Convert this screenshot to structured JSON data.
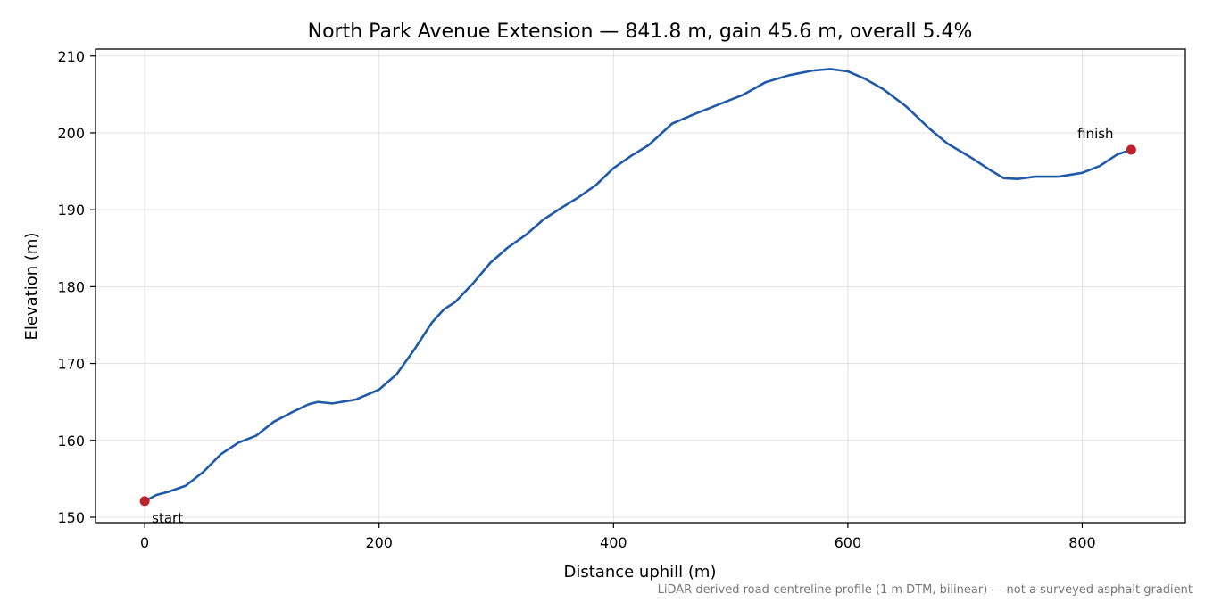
{
  "chart_data": {
    "type": "line",
    "title": "North Park Avenue Extension — 841.8 m, gain 45.6 m, overall 5.4%",
    "xlabel": "Distance uphill (m)",
    "ylabel": "Elevation (m)",
    "caption": "LiDAR-derived road-centreline profile (1 m DTM, bilinear) — not a surveyed asphalt gradient",
    "xlim": [
      -42,
      888
    ],
    "ylim": [
      149.3,
      210.9
    ],
    "xticks": [
      0,
      200,
      400,
      600,
      800
    ],
    "yticks": [
      150,
      160,
      170,
      180,
      190,
      200,
      210
    ],
    "grid": true,
    "line_color": "#1f5aa8",
    "marker_color": "#c0202a",
    "series": [
      {
        "x": [
          0,
          10,
          20,
          35,
          50,
          65,
          80,
          95,
          110,
          125,
          140,
          148,
          160,
          180,
          200,
          215,
          230,
          245,
          255,
          265,
          280,
          295,
          310,
          325,
          340,
          355,
          370,
          385,
          400,
          415,
          430,
          450,
          470,
          490,
          510,
          530,
          550,
          570,
          585,
          600,
          615,
          630,
          650,
          670,
          685,
          705,
          720,
          733,
          745,
          760,
          780,
          800,
          815,
          830,
          841.8
        ],
        "y": [
          152.1,
          152.9,
          153.3,
          154.1,
          155.9,
          158.2,
          159.7,
          160.6,
          162.4,
          163.6,
          164.7,
          165.0,
          164.8,
          165.3,
          166.6,
          168.6,
          171.8,
          175.3,
          177.0,
          178.0,
          180.4,
          183.1,
          185.1,
          186.7,
          188.7,
          190.2,
          191.6,
          193.2,
          195.4,
          197.0,
          198.4,
          201.2,
          202.5,
          203.7,
          204.9,
          206.6,
          207.5,
          208.1,
          208.3,
          208.0,
          207.0,
          205.7,
          203.4,
          200.5,
          198.6,
          196.8,
          195.3,
          194.1,
          194.0,
          194.3,
          194.3,
          194.8,
          195.7,
          197.2,
          197.8
        ]
      }
    ],
    "annotations": [
      {
        "label": "start",
        "x": 0,
        "y": 152.1
      },
      {
        "label": "finish",
        "x": 841.8,
        "y": 197.8
      }
    ]
  }
}
